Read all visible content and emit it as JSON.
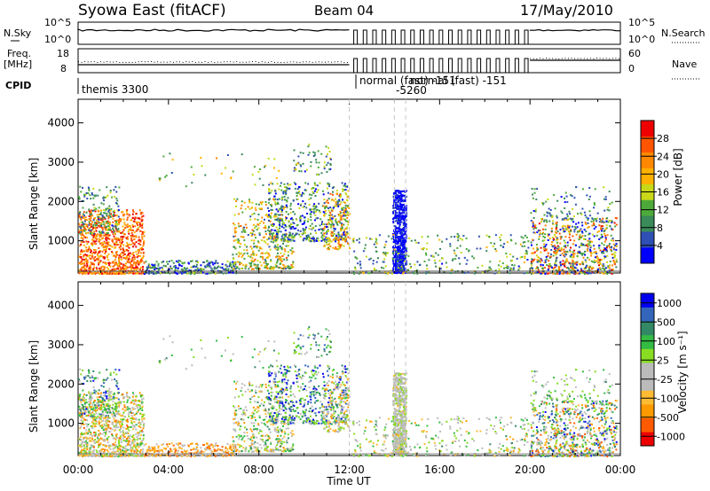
{
  "header": {
    "title": "Syowa East (fitACF)",
    "beam": "Beam 04",
    "date": "17/May/2010"
  },
  "strip_labels": {
    "nsky": "N.Sky",
    "freq_top": "Freq.",
    "freq_unit": "[MHz]",
    "cpid": "CPID",
    "nsearch": "N.Search",
    "nave": "Nave",
    "nsky_ticks": [
      "10^5",
      "10^0"
    ],
    "nsearch_ticks": [
      "10^5",
      "10^0"
    ],
    "freq_ticks": [
      "18",
      "8"
    ],
    "nave_ticks": [
      "60",
      "0"
    ]
  },
  "cpid_labels": [
    "themis 3300",
    "normal (fast) -151",
    "-5260",
    "normal (fast) -151"
  ],
  "colors": {
    "power": [
      "#0000ff",
      "#2e4fb3",
      "#3a8a5a",
      "#4daa3a",
      "#c8d818",
      "#ffb000",
      "#ff8800",
      "#ff5500",
      "#ee0000"
    ],
    "velocity": [
      "#ee0000",
      "#ff5a00",
      "#ff9900",
      "#ffbb33",
      "#bbbbbb",
      "#bbbbbb",
      "#88dd22",
      "#33bb44",
      "#338866",
      "#3366bb",
      "#0000ee"
    ]
  },
  "chart_data": [
    {
      "type": "heatmap",
      "name": "power",
      "xlabel": "",
      "ylabel": "Slant Range [km]",
      "x_ticks": [
        "00:00",
        "04:00",
        "08:00",
        "12:00",
        "16:00",
        "20:00",
        "00:00"
      ],
      "y_ticks": [
        1000,
        2000,
        3000,
        4000
      ],
      "ylim": [
        180,
        4600
      ],
      "colorbar_label": "Power [dB]",
      "colorbar_ticks": [
        4,
        8,
        12,
        16,
        20,
        24,
        28
      ]
    },
    {
      "type": "heatmap",
      "name": "velocity",
      "xlabel": "Time UT",
      "ylabel": "Slant Range [km]",
      "x_ticks": [
        "00:00",
        "04:00",
        "08:00",
        "12:00",
        "16:00",
        "20:00",
        "00:00"
      ],
      "y_ticks": [
        1000,
        2000,
        3000,
        4000
      ],
      "ylim": [
        180,
        4600
      ],
      "colorbar_label": "Velocity [m s⁻¹]",
      "colorbar_ticks": [
        1000,
        500,
        100,
        25,
        -25,
        -100,
        -500,
        -1000
      ]
    }
  ]
}
